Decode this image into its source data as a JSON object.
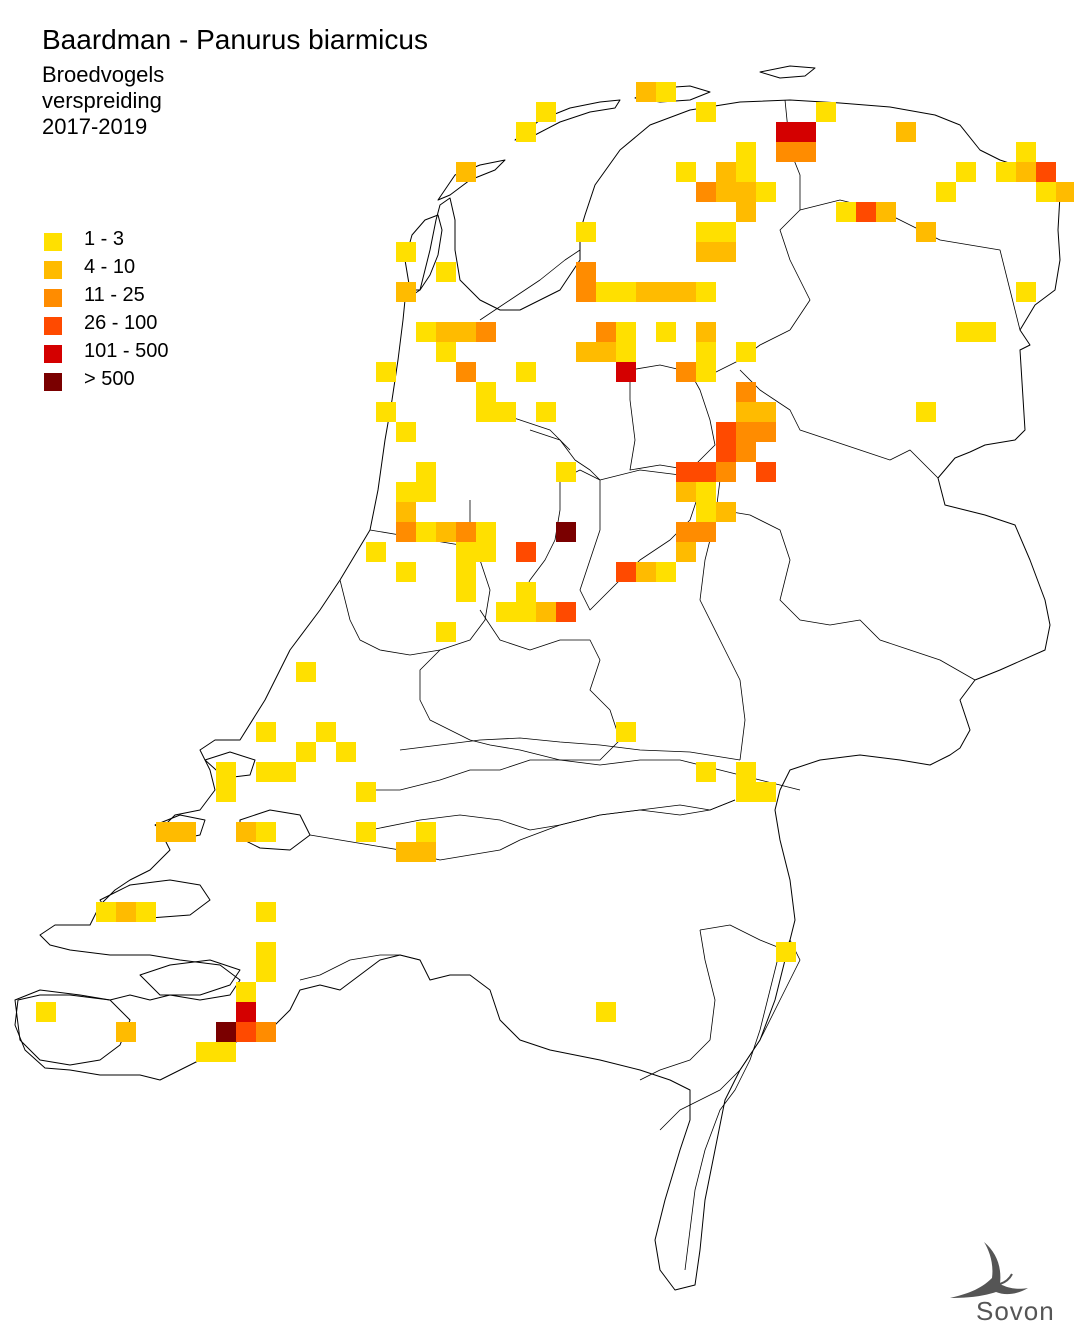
{
  "header": {
    "title": "Baardman - Panurus biarmicus",
    "subtitle_lines": [
      "Broedvogels",
      "verspreiding",
      "2017-2019"
    ]
  },
  "legend": [
    {
      "label": "1 - 3",
      "color": "#FFE000"
    },
    {
      "label": "4 - 10",
      "color": "#FFBB00"
    },
    {
      "label": "11 - 25",
      "color": "#FF8C00"
    },
    {
      "label": "26 - 100",
      "color": "#FF4A00"
    },
    {
      "label": "101 - 500",
      "color": "#D40000"
    },
    {
      "label": "> 500",
      "color": "#7A0000"
    }
  ],
  "logo": {
    "text": "Sovon",
    "icon": "swallow-icon"
  }
}
